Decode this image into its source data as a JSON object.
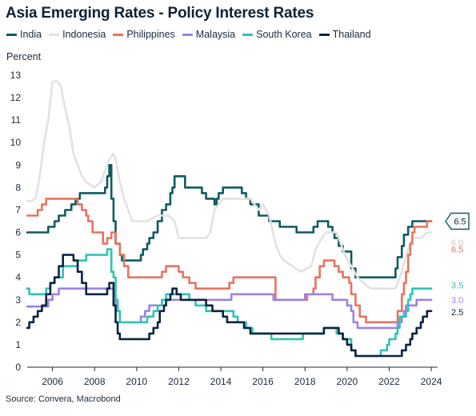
{
  "chart_data": {
    "type": "line",
    "title": "Asia Emerging Rates - Policy Interest Rates",
    "ylabel": "Percent",
    "xlabel": "",
    "source": "Source: Convera, Macrobond",
    "xlim": [
      2004.8,
      2024.3
    ],
    "ylim": [
      0,
      13
    ],
    "x_ticks": [
      2006,
      2008,
      2010,
      2012,
      2014,
      2016,
      2018,
      2020,
      2022,
      2024
    ],
    "y_ticks": [
      0,
      1,
      2,
      3,
      4,
      5,
      6,
      7,
      8,
      9,
      10,
      11,
      12,
      13
    ],
    "grid": false,
    "legend_position": "top",
    "series": [
      {
        "name": "India",
        "color": "#0f5b5f",
        "end_label": "6.5",
        "step": true,
        "points": [
          [
            2004.8,
            6.0
          ],
          [
            2005.8,
            6.25
          ],
          [
            2006.1,
            6.5
          ],
          [
            2006.3,
            6.75
          ],
          [
            2006.6,
            7.0
          ],
          [
            2006.9,
            7.25
          ],
          [
            2007.1,
            7.5
          ],
          [
            2007.3,
            7.75
          ],
          [
            2008.5,
            8.0
          ],
          [
            2008.6,
            8.5
          ],
          [
            2008.7,
            9.0
          ],
          [
            2008.8,
            7.5
          ],
          [
            2008.9,
            6.5
          ],
          [
            2009.0,
            5.5
          ],
          [
            2009.2,
            5.0
          ],
          [
            2009.3,
            4.75
          ],
          [
            2010.2,
            5.0
          ],
          [
            2010.3,
            5.25
          ],
          [
            2010.5,
            5.5
          ],
          [
            2010.6,
            5.75
          ],
          [
            2010.8,
            6.0
          ],
          [
            2011.0,
            6.5
          ],
          [
            2011.2,
            7.0
          ],
          [
            2011.4,
            7.25
          ],
          [
            2011.6,
            7.75
          ],
          [
            2011.7,
            8.0
          ],
          [
            2011.8,
            8.5
          ],
          [
            2012.3,
            8.0
          ],
          [
            2013.1,
            7.75
          ],
          [
            2013.3,
            7.5
          ],
          [
            2013.7,
            7.25
          ],
          [
            2013.8,
            7.5
          ],
          [
            2013.9,
            7.75
          ],
          [
            2014.1,
            8.0
          ],
          [
            2015.0,
            7.75
          ],
          [
            2015.2,
            7.5
          ],
          [
            2015.4,
            7.25
          ],
          [
            2015.8,
            6.75
          ],
          [
            2016.3,
            6.5
          ],
          [
            2016.8,
            6.25
          ],
          [
            2017.6,
            6.0
          ],
          [
            2018.4,
            6.25
          ],
          [
            2018.6,
            6.5
          ],
          [
            2019.1,
            6.25
          ],
          [
            2019.3,
            6.0
          ],
          [
            2019.4,
            5.75
          ],
          [
            2019.6,
            5.4
          ],
          [
            2019.8,
            5.15
          ],
          [
            2020.2,
            4.4
          ],
          [
            2020.4,
            4.0
          ],
          [
            2022.3,
            4.4
          ],
          [
            2022.4,
            4.9
          ],
          [
            2022.6,
            5.4
          ],
          [
            2022.7,
            5.9
          ],
          [
            2022.9,
            6.25
          ],
          [
            2023.1,
            6.5
          ],
          [
            2024.0,
            6.5
          ]
        ]
      },
      {
        "name": "Indonesia",
        "color": "#e2e2e2",
        "end_label": "6.0",
        "step": false,
        "points": [
          [
            2004.8,
            7.4
          ],
          [
            2005.0,
            7.4
          ],
          [
            2005.2,
            7.5
          ],
          [
            2005.4,
            8.5
          ],
          [
            2005.6,
            10.0
          ],
          [
            2005.8,
            11.0
          ],
          [
            2006.0,
            12.7
          ],
          [
            2006.2,
            12.75
          ],
          [
            2006.4,
            12.5
          ],
          [
            2006.6,
            11.5
          ],
          [
            2006.8,
            10.75
          ],
          [
            2007.0,
            9.5
          ],
          [
            2007.2,
            9.0
          ],
          [
            2007.4,
            8.5
          ],
          [
            2007.6,
            8.25
          ],
          [
            2008.0,
            8.0
          ],
          [
            2008.3,
            8.25
          ],
          [
            2008.5,
            8.75
          ],
          [
            2008.7,
            9.25
          ],
          [
            2008.9,
            9.5
          ],
          [
            2009.0,
            9.25
          ],
          [
            2009.2,
            8.25
          ],
          [
            2009.4,
            7.5
          ],
          [
            2009.6,
            7.0
          ],
          [
            2009.8,
            6.5
          ],
          [
            2010.5,
            6.5
          ],
          [
            2011.0,
            6.75
          ],
          [
            2011.5,
            6.75
          ],
          [
            2011.8,
            6.5
          ],
          [
            2012.0,
            5.75
          ],
          [
            2013.3,
            5.75
          ],
          [
            2013.5,
            6.0
          ],
          [
            2013.7,
            7.0
          ],
          [
            2013.9,
            7.25
          ],
          [
            2014.1,
            7.5
          ],
          [
            2015.0,
            7.5
          ],
          [
            2015.4,
            7.5
          ],
          [
            2015.8,
            7.0
          ],
          [
            2016.0,
            7.25
          ],
          [
            2016.3,
            6.75
          ],
          [
            2016.6,
            5.5
          ],
          [
            2016.8,
            5.0
          ],
          [
            2017.0,
            4.75
          ],
          [
            2017.8,
            4.25
          ],
          [
            2018.3,
            4.5
          ],
          [
            2018.5,
            5.25
          ],
          [
            2018.8,
            5.75
          ],
          [
            2019.0,
            6.0
          ],
          [
            2019.5,
            6.0
          ],
          [
            2019.7,
            5.5
          ],
          [
            2019.9,
            5.0
          ],
          [
            2020.2,
            4.5
          ],
          [
            2020.5,
            4.0
          ],
          [
            2020.8,
            3.75
          ],
          [
            2021.1,
            3.5
          ],
          [
            2022.3,
            3.5
          ],
          [
            2022.6,
            4.25
          ],
          [
            2022.8,
            5.0
          ],
          [
            2023.1,
            5.75
          ],
          [
            2023.5,
            5.75
          ],
          [
            2023.8,
            6.0
          ],
          [
            2024.0,
            6.0
          ]
        ]
      },
      {
        "name": "Philippines",
        "color": "#e8735f",
        "end_label": "6.5",
        "step": true,
        "points": [
          [
            2004.8,
            6.75
          ],
          [
            2005.3,
            7.0
          ],
          [
            2005.5,
            7.25
          ],
          [
            2005.7,
            7.5
          ],
          [
            2007.2,
            7.25
          ],
          [
            2007.4,
            7.0
          ],
          [
            2007.6,
            6.75
          ],
          [
            2007.7,
            6.5
          ],
          [
            2007.9,
            6.0
          ],
          [
            2008.4,
            5.5
          ],
          [
            2008.6,
            5.75
          ],
          [
            2008.8,
            6.0
          ],
          [
            2009.0,
            5.5
          ],
          [
            2009.2,
            5.0
          ],
          [
            2009.4,
            4.5
          ],
          [
            2009.6,
            4.0
          ],
          [
            2011.2,
            4.25
          ],
          [
            2011.4,
            4.5
          ],
          [
            2012.0,
            4.25
          ],
          [
            2012.2,
            4.0
          ],
          [
            2012.5,
            3.75
          ],
          [
            2012.8,
            3.5
          ],
          [
            2014.4,
            3.75
          ],
          [
            2014.6,
            4.0
          ],
          [
            2016.6,
            3.0
          ],
          [
            2018.1,
            3.25
          ],
          [
            2018.4,
            3.5
          ],
          [
            2018.5,
            4.0
          ],
          [
            2018.7,
            4.5
          ],
          [
            2018.9,
            4.75
          ],
          [
            2019.4,
            4.5
          ],
          [
            2019.6,
            4.25
          ],
          [
            2019.8,
            4.0
          ],
          [
            2020.1,
            3.75
          ],
          [
            2020.2,
            3.25
          ],
          [
            2020.4,
            2.75
          ],
          [
            2020.6,
            2.25
          ],
          [
            2020.9,
            2.0
          ],
          [
            2022.4,
            2.5
          ],
          [
            2022.6,
            3.25
          ],
          [
            2022.7,
            3.75
          ],
          [
            2022.8,
            4.25
          ],
          [
            2022.9,
            5.0
          ],
          [
            2023.0,
            5.5
          ],
          [
            2023.1,
            6.0
          ],
          [
            2023.2,
            6.25
          ],
          [
            2023.8,
            6.5
          ],
          [
            2024.0,
            6.5
          ]
        ]
      },
      {
        "name": "Malaysia",
        "color": "#9b83e0",
        "end_label": "3.0",
        "step": true,
        "points": [
          [
            2004.8,
            2.7
          ],
          [
            2005.8,
            3.0
          ],
          [
            2006.0,
            3.25
          ],
          [
            2006.3,
            3.5
          ],
          [
            2008.9,
            3.25
          ],
          [
            2009.0,
            2.5
          ],
          [
            2009.2,
            2.0
          ],
          [
            2010.2,
            2.25
          ],
          [
            2010.4,
            2.5
          ],
          [
            2010.6,
            2.75
          ],
          [
            2011.4,
            3.0
          ],
          [
            2014.5,
            3.25
          ],
          [
            2016.5,
            3.0
          ],
          [
            2018.0,
            3.25
          ],
          [
            2019.3,
            3.0
          ],
          [
            2020.0,
            2.75
          ],
          [
            2020.2,
            2.5
          ],
          [
            2020.3,
            2.0
          ],
          [
            2020.5,
            1.75
          ],
          [
            2022.4,
            2.0
          ],
          [
            2022.6,
            2.25
          ],
          [
            2022.7,
            2.5
          ],
          [
            2022.8,
            2.75
          ],
          [
            2023.3,
            3.0
          ],
          [
            2024.0,
            3.0
          ]
        ]
      },
      {
        "name": "South Korea",
        "color": "#2ec4b6",
        "end_label": "3.5",
        "step": true,
        "points": [
          [
            2004.8,
            3.5
          ],
          [
            2004.9,
            3.25
          ],
          [
            2005.7,
            3.5
          ],
          [
            2005.9,
            3.75
          ],
          [
            2006.1,
            4.0
          ],
          [
            2006.5,
            4.5
          ],
          [
            2007.2,
            4.75
          ],
          [
            2007.6,
            5.0
          ],
          [
            2008.6,
            5.25
          ],
          [
            2008.8,
            4.25
          ],
          [
            2008.9,
            4.0
          ],
          [
            2009.0,
            3.0
          ],
          [
            2009.1,
            2.5
          ],
          [
            2009.2,
            2.0
          ],
          [
            2010.5,
            2.25
          ],
          [
            2010.8,
            2.5
          ],
          [
            2011.0,
            2.75
          ],
          [
            2011.2,
            3.0
          ],
          [
            2011.4,
            3.25
          ],
          [
            2012.5,
            3.0
          ],
          [
            2012.8,
            2.75
          ],
          [
            2013.3,
            2.5
          ],
          [
            2014.6,
            2.25
          ],
          [
            2014.8,
            2.0
          ],
          [
            2015.2,
            1.75
          ],
          [
            2015.5,
            1.5
          ],
          [
            2016.4,
            1.25
          ],
          [
            2017.9,
            1.5
          ],
          [
            2018.9,
            1.75
          ],
          [
            2019.5,
            1.5
          ],
          [
            2019.8,
            1.25
          ],
          [
            2020.2,
            0.75
          ],
          [
            2020.4,
            0.5
          ],
          [
            2021.6,
            0.75
          ],
          [
            2021.9,
            1.0
          ],
          [
            2022.0,
            1.25
          ],
          [
            2022.3,
            1.5
          ],
          [
            2022.4,
            1.75
          ],
          [
            2022.5,
            2.25
          ],
          [
            2022.8,
            2.5
          ],
          [
            2022.9,
            3.0
          ],
          [
            2023.0,
            3.25
          ],
          [
            2023.1,
            3.5
          ],
          [
            2024.0,
            3.5
          ]
        ]
      },
      {
        "name": "Thailand",
        "color": "#0d2440",
        "end_label": "2.5",
        "step": true,
        "points": [
          [
            2004.8,
            1.75
          ],
          [
            2004.9,
            2.0
          ],
          [
            2005.1,
            2.25
          ],
          [
            2005.3,
            2.5
          ],
          [
            2005.5,
            2.75
          ],
          [
            2005.7,
            3.25
          ],
          [
            2005.9,
            3.75
          ],
          [
            2006.1,
            4.0
          ],
          [
            2006.3,
            4.5
          ],
          [
            2006.5,
            5.0
          ],
          [
            2007.0,
            4.75
          ],
          [
            2007.2,
            4.25
          ],
          [
            2007.4,
            3.75
          ],
          [
            2007.6,
            3.25
          ],
          [
            2008.6,
            3.5
          ],
          [
            2008.7,
            3.75
          ],
          [
            2008.9,
            2.75
          ],
          [
            2009.0,
            2.0
          ],
          [
            2009.1,
            1.5
          ],
          [
            2009.2,
            1.25
          ],
          [
            2010.6,
            1.5
          ],
          [
            2010.8,
            1.75
          ],
          [
            2011.0,
            2.0
          ],
          [
            2011.1,
            2.5
          ],
          [
            2011.3,
            2.75
          ],
          [
            2011.4,
            3.0
          ],
          [
            2011.6,
            3.25
          ],
          [
            2011.7,
            3.5
          ],
          [
            2011.9,
            3.25
          ],
          [
            2012.1,
            3.0
          ],
          [
            2012.5,
            3.0
          ],
          [
            2013.3,
            2.75
          ],
          [
            2013.6,
            2.5
          ],
          [
            2014.1,
            2.25
          ],
          [
            2014.3,
            2.0
          ],
          [
            2015.1,
            1.75
          ],
          [
            2015.4,
            1.5
          ],
          [
            2018.9,
            1.75
          ],
          [
            2019.6,
            1.5
          ],
          [
            2019.8,
            1.25
          ],
          [
            2020.0,
            1.0
          ],
          [
            2020.2,
            0.75
          ],
          [
            2020.4,
            0.5
          ],
          [
            2022.6,
            0.75
          ],
          [
            2022.8,
            1.0
          ],
          [
            2023.0,
            1.25
          ],
          [
            2023.1,
            1.5
          ],
          [
            2023.3,
            1.75
          ],
          [
            2023.5,
            2.0
          ],
          [
            2023.6,
            2.25
          ],
          [
            2023.8,
            2.5
          ],
          [
            2024.0,
            2.5
          ]
        ]
      }
    ]
  }
}
